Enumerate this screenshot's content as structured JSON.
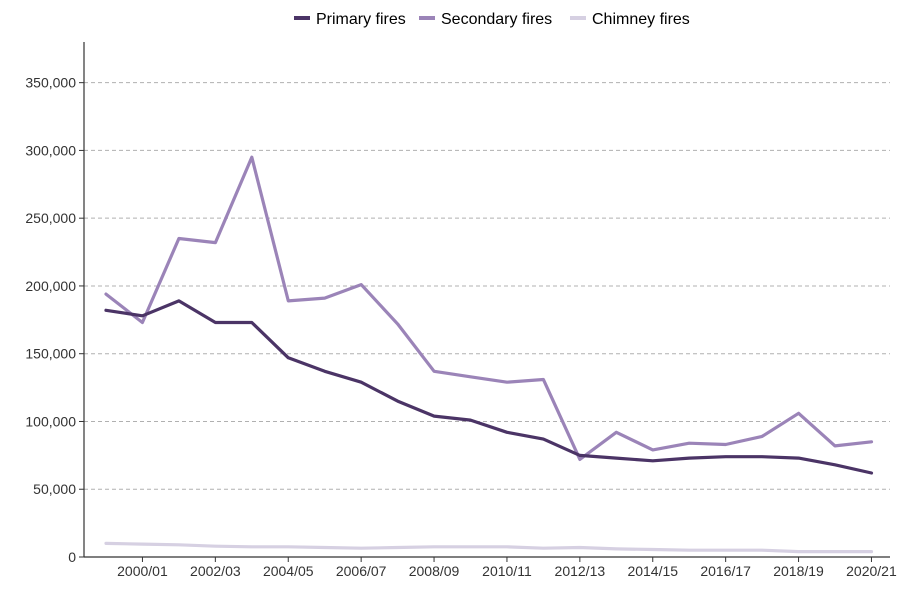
{
  "chart_data": {
    "type": "line",
    "title": "",
    "xlabel": "",
    "ylabel": "",
    "x": [
      "1999/00",
      "2000/01",
      "2001/02",
      "2002/03",
      "2003/04",
      "2004/05",
      "2005/06",
      "2006/07",
      "2007/08",
      "2008/09",
      "2009/10",
      "2010/11",
      "2011/12",
      "2012/13",
      "2013/14",
      "2014/15",
      "2015/16",
      "2016/17",
      "2017/18",
      "2018/19",
      "2019/20",
      "2020/21"
    ],
    "x_tick_labels": [
      "2000/01",
      "2002/03",
      "2004/05",
      "2006/07",
      "2008/09",
      "2010/11",
      "2012/13",
      "2014/15",
      "2016/17",
      "2018/19",
      "2020/21"
    ],
    "ylim": [
      0,
      380000
    ],
    "y_ticks": [
      0,
      50000,
      100000,
      150000,
      200000,
      250000,
      300000,
      350000
    ],
    "y_tick_labels": [
      "0",
      "50,000",
      "100,000",
      "150,000",
      "200,000",
      "250,000",
      "300,000",
      "350,000"
    ],
    "grid": "horizontal-dashed",
    "legend_position": "top",
    "series": [
      {
        "name": "Primary fires",
        "color": "#4b3466",
        "values": [
          182000,
          178000,
          189000,
          173000,
          173000,
          147000,
          137000,
          129000,
          115000,
          104000,
          101000,
          92000,
          87000,
          75000,
          73000,
          71000,
          73000,
          74000,
          74000,
          73000,
          68000,
          62000
        ]
      },
      {
        "name": "Secondary fires",
        "color": "#9b84b8",
        "values": [
          194000,
          173000,
          235000,
          232000,
          295000,
          189000,
          191000,
          201000,
          172000,
          137000,
          133000,
          129000,
          131000,
          72000,
          92000,
          79000,
          84000,
          83000,
          89000,
          106000,
          82000,
          85000
        ]
      },
      {
        "name": "Chimney fires",
        "color": "#d6d0e2",
        "values": [
          10000,
          9500,
          9000,
          8000,
          7500,
          7500,
          7000,
          6500,
          7000,
          7500,
          7500,
          7500,
          6500,
          7000,
          6000,
          5500,
          5000,
          5000,
          5000,
          4000,
          4000,
          4000
        ]
      }
    ]
  }
}
